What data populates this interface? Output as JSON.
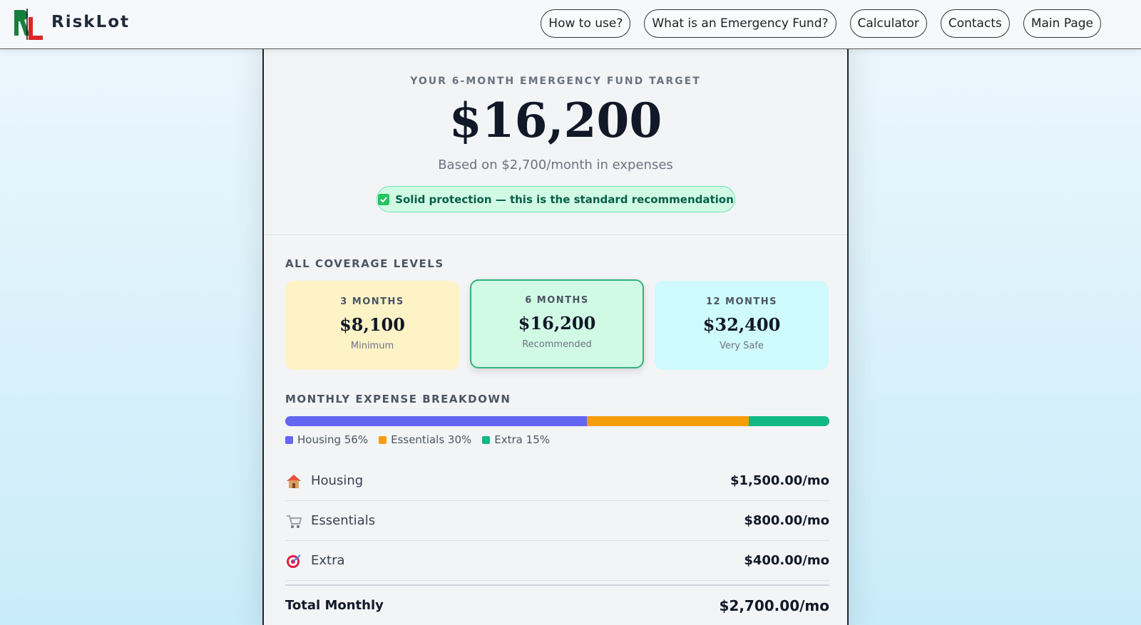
{
  "header": {
    "brand": "RiskLot",
    "nav": [
      "How to use?",
      "What is an Emergency Fund?",
      "Calculator",
      "Contacts",
      "Main Page"
    ]
  },
  "target": {
    "label": "YOUR 6-MONTH EMERGENCY FUND TARGET",
    "amount": "$16,200",
    "basis": "Based on $2,700/month in expenses",
    "badge": "Solid protection — this is the standard recommendation"
  },
  "coverage": {
    "title": "ALL COVERAGE LEVELS",
    "levels": [
      {
        "months": "3 MONTHS",
        "amount": "$8,100",
        "note": "Minimum"
      },
      {
        "months": "6 MONTHS",
        "amount": "$16,200",
        "note": "Recommended"
      },
      {
        "months": "12 MONTHS",
        "amount": "$32,400",
        "note": "Very Safe"
      }
    ]
  },
  "breakdown": {
    "title": "MONTHLY EXPENSE BREAKDOWN",
    "segments": [
      {
        "label": "Housing 56%",
        "value": 56,
        "color": "#6366f1"
      },
      {
        "label": "Essentials 30%",
        "value": 30,
        "color": "#f59e0b"
      },
      {
        "label": "Extra 15%",
        "value": 15,
        "color": "#10b981"
      }
    ]
  },
  "expenses": {
    "rows": [
      {
        "name": "Housing",
        "amount": "$1,500.00/mo"
      },
      {
        "name": "Essentials",
        "amount": "$800.00/mo"
      },
      {
        "name": "Extra",
        "amount": "$400.00/mo"
      }
    ],
    "total": {
      "label": "Total Monthly",
      "amount": "$2,700.00/mo"
    }
  }
}
